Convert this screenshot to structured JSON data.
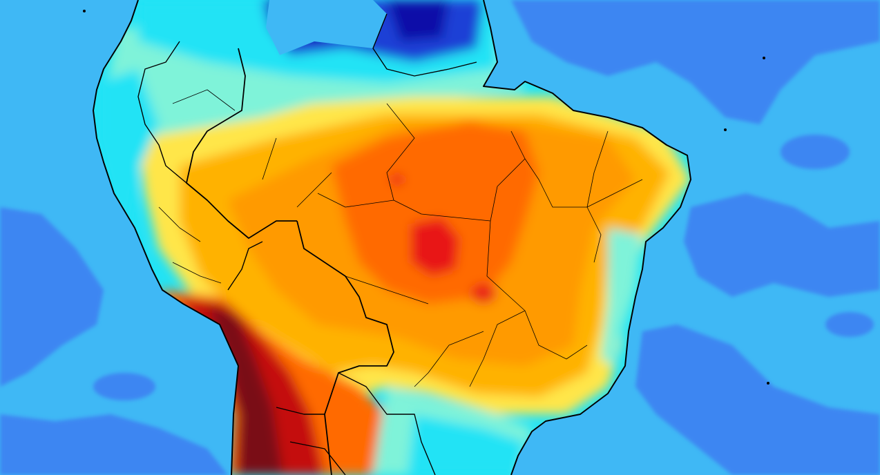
{
  "map": {
    "region": "South America",
    "projection": "equirectangular",
    "colors": {
      "ocean_light": "#3fb8f5",
      "ocean_mid": "#3d86f2",
      "deep_blue": "#1f3fd6",
      "navy": "#0d0fa8",
      "cyan": "#22e3f5",
      "aqua": "#7ff3d9",
      "pale_yellow": "#fff6a0",
      "yellow": "#ffe64a",
      "gold": "#ffb200",
      "orange": "#ff9a00",
      "dark_orange": "#ff6a00",
      "red": "#e81717",
      "crimson": "#c40e0e",
      "maroon": "#7a0f12",
      "border": "#000000"
    }
  }
}
